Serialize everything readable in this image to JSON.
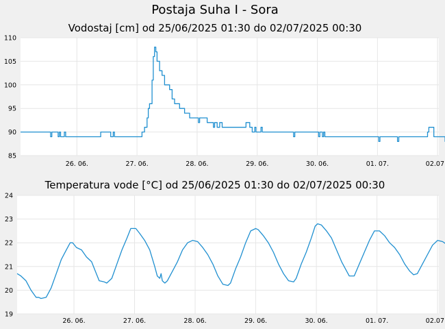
{
  "title": "Postaja Suha I - Sora",
  "colors": {
    "series": "#1f8fd0",
    "background": "#f0f0f0",
    "plot_background": "#ffffff",
    "grid": "#e6e6e6"
  },
  "chart_data": [
    {
      "type": "line",
      "title": "Vodostaj [cm] od 25/06/2025 01:30 do 02/07/2025 00:30",
      "xlabel": "",
      "ylabel": "",
      "ylim": [
        85,
        110
      ],
      "yticks": [
        85,
        90,
        95,
        100,
        105,
        110
      ],
      "x_range": [
        "2025-06-25 01:30",
        "2025-07-02 00:30"
      ],
      "xticks": [
        {
          "date": "2025-06-26 00:00",
          "label": "26. 06."
        },
        {
          "date": "2025-06-27 00:00",
          "label": "27. 06."
        },
        {
          "date": "2025-06-28 00:00",
          "label": "28. 06."
        },
        {
          "date": "2025-06-29 00:00",
          "label": "29. 06."
        },
        {
          "date": "2025-06-30 00:00",
          "label": "30. 06."
        },
        {
          "date": "2025-07-01 00:00",
          "label": "01. 07."
        },
        {
          "date": "2025-07-02 00:00",
          "label": "02.07"
        }
      ],
      "grid": true,
      "series": [
        {
          "values": [
            [
              "2025-06-25 01:30",
              90
            ],
            [
              "2025-06-25 13:00",
              90
            ],
            [
              "2025-06-25 13:30",
              89
            ],
            [
              "2025-06-25 14:00",
              90
            ],
            [
              "2025-06-25 16:00",
              90
            ],
            [
              "2025-06-25 16:30",
              89
            ],
            [
              "2025-06-25 17:00",
              90
            ],
            [
              "2025-06-25 17:30",
              89
            ],
            [
              "2025-06-25 18:30",
              89
            ],
            [
              "2025-06-25 19:00",
              90
            ],
            [
              "2025-06-25 19:30",
              89
            ],
            [
              "2025-06-26 09:00",
              89
            ],
            [
              "2025-06-26 09:30",
              90
            ],
            [
              "2025-06-26 13:00",
              90
            ],
            [
              "2025-06-26 13:30",
              89
            ],
            [
              "2025-06-26 14:00",
              89
            ],
            [
              "2025-06-26 14:30",
              90
            ],
            [
              "2025-06-26 15:00",
              89
            ],
            [
              "2025-06-27 01:30",
              89
            ],
            [
              "2025-06-27 02:00",
              90
            ],
            [
              "2025-06-27 03:00",
              91
            ],
            [
              "2025-06-27 04:00",
              93
            ],
            [
              "2025-06-27 04:30",
              95
            ],
            [
              "2025-06-27 05:00",
              96
            ],
            [
              "2025-06-27 05:30",
              96
            ],
            [
              "2025-06-27 06:00",
              101
            ],
            [
              "2025-06-27 06:30",
              106
            ],
            [
              "2025-06-27 07:00",
              108
            ],
            [
              "2025-06-27 07:30",
              107
            ],
            [
              "2025-06-27 08:00",
              105
            ],
            [
              "2025-06-27 09:00",
              103
            ],
            [
              "2025-06-27 10:00",
              102
            ],
            [
              "2025-06-27 11:00",
              100
            ],
            [
              "2025-06-27 13:00",
              99
            ],
            [
              "2025-06-27 14:00",
              97
            ],
            [
              "2025-06-27 15:00",
              96
            ],
            [
              "2025-06-27 17:00",
              95
            ],
            [
              "2025-06-27 19:00",
              94
            ],
            [
              "2025-06-27 21:00",
              93
            ],
            [
              "2025-06-28 00:00",
              93
            ],
            [
              "2025-06-28 00:30",
              92
            ],
            [
              "2025-06-28 01:00",
              93
            ],
            [
              "2025-06-28 03:00",
              93
            ],
            [
              "2025-06-28 04:00",
              92
            ],
            [
              "2025-06-28 06:00",
              92
            ],
            [
              "2025-06-28 06:30",
              91
            ],
            [
              "2025-06-28 07:00",
              92
            ],
            [
              "2025-06-28 08:00",
              91
            ],
            [
              "2025-06-28 09:00",
              92
            ],
            [
              "2025-06-28 10:00",
              91
            ],
            [
              "2025-06-28 19:00",
              91
            ],
            [
              "2025-06-28 19:30",
              92
            ],
            [
              "2025-06-28 21:00",
              91
            ],
            [
              "2025-06-28 22:00",
              90
            ],
            [
              "2025-06-28 23:00",
              91
            ],
            [
              "2025-06-28 23:30",
              90
            ],
            [
              "2025-06-29 01:00",
              90
            ],
            [
              "2025-06-29 01:30",
              91
            ],
            [
              "2025-06-29 02:00",
              90
            ],
            [
              "2025-06-29 14:00",
              90
            ],
            [
              "2025-06-29 14:30",
              89
            ],
            [
              "2025-06-29 15:00",
              90
            ],
            [
              "2025-06-30 00:00",
              90
            ],
            [
              "2025-06-30 00:30",
              89
            ],
            [
              "2025-06-30 01:00",
              90
            ],
            [
              "2025-06-30 02:00",
              89
            ],
            [
              "2025-06-30 02:30",
              90
            ],
            [
              "2025-06-30 03:00",
              89
            ],
            [
              "2025-07-01 00:00",
              89
            ],
            [
              "2025-07-01 00:30",
              88
            ],
            [
              "2025-07-01 01:00",
              89
            ],
            [
              "2025-07-01 07:30",
              89
            ],
            [
              "2025-07-01 08:00",
              88
            ],
            [
              "2025-07-01 08:30",
              89
            ],
            [
              "2025-07-01 19:30",
              89
            ],
            [
              "2025-07-01 20:00",
              90
            ],
            [
              "2025-07-01 20:30",
              91
            ],
            [
              "2025-07-01 22:00",
              91
            ],
            [
              "2025-07-01 22:30",
              89
            ],
            [
              "2025-07-02 02:30",
              89
            ],
            [
              "2025-07-02 03:00",
              88
            ],
            [
              "2025-07-02 06:00",
              88
            ],
            [
              "2025-07-02 06:30",
              89
            ],
            [
              "2025-07-02 07:00",
              89
            ]
          ]
        }
      ]
    },
    {
      "type": "line",
      "title": "Temperatura vode [°C] od 25/06/2025 01:30 do 02/07/2025 00:30",
      "xlabel": "",
      "ylabel": "",
      "ylim": [
        19,
        24
      ],
      "yticks": [
        19,
        20,
        21,
        22,
        23,
        24
      ],
      "x_range": [
        "2025-06-25 01:30",
        "2025-07-02 00:30"
      ],
      "xticks": [
        {
          "date": "2025-06-26 00:00",
          "label": "26. 06."
        },
        {
          "date": "2025-06-27 00:00",
          "label": "27. 06."
        },
        {
          "date": "2025-06-28 00:00",
          "label": "28. 06."
        },
        {
          "date": "2025-06-29 00:00",
          "label": "29. 06."
        },
        {
          "date": "2025-06-30 00:00",
          "label": "30. 06."
        },
        {
          "date": "2025-07-01 00:00",
          "label": "01. 07."
        },
        {
          "date": "2025-07-02 00:00",
          "label": "02.07"
        }
      ],
      "grid": true,
      "series": [
        {
          "values": [
            [
              "2025-06-25 01:30",
              20.7
            ],
            [
              "2025-06-25 03:00",
              20.6
            ],
            [
              "2025-06-25 05:00",
              20.4
            ],
            [
              "2025-06-25 07:00",
              20.0
            ],
            [
              "2025-06-25 09:00",
              19.7
            ],
            [
              "2025-06-25 10:00",
              19.7
            ],
            [
              "2025-06-25 11:00",
              19.65
            ],
            [
              "2025-06-25 13:00",
              19.7
            ],
            [
              "2025-06-25 15:00",
              20.1
            ],
            [
              "2025-06-25 17:00",
              20.7
            ],
            [
              "2025-06-25 19:00",
              21.3
            ],
            [
              "2025-06-25 21:00",
              21.7
            ],
            [
              "2025-06-25 22:30",
              22.0
            ],
            [
              "2025-06-25 23:30",
              22.0
            ],
            [
              "2025-06-26 01:00",
              21.8
            ],
            [
              "2025-06-26 03:00",
              21.7
            ],
            [
              "2025-06-26 05:00",
              21.4
            ],
            [
              "2025-06-26 07:00",
              21.2
            ],
            [
              "2025-06-26 08:30",
              20.8
            ],
            [
              "2025-06-26 10:00",
              20.4
            ],
            [
              "2025-06-26 12:00",
              20.35
            ],
            [
              "2025-06-26 13:00",
              20.3
            ],
            [
              "2025-06-26 15:00",
              20.5
            ],
            [
              "2025-06-26 17:00",
              21.1
            ],
            [
              "2025-06-26 19:00",
              21.7
            ],
            [
              "2025-06-26 21:00",
              22.2
            ],
            [
              "2025-06-26 22:30",
              22.6
            ],
            [
              "2025-06-27 00:30",
              22.6
            ],
            [
              "2025-06-27 02:00",
              22.4
            ],
            [
              "2025-06-27 04:00",
              22.1
            ],
            [
              "2025-06-27 06:00",
              21.7
            ],
            [
              "2025-06-27 08:00",
              21.0
            ],
            [
              "2025-06-27 09:00",
              20.6
            ],
            [
              "2025-06-27 10:00",
              20.5
            ],
            [
              "2025-06-27 10:30",
              20.7
            ],
            [
              "2025-06-27 11:00",
              20.4
            ],
            [
              "2025-06-27 12:00",
              20.3
            ],
            [
              "2025-06-27 13:00",
              20.4
            ],
            [
              "2025-06-27 15:00",
              20.8
            ],
            [
              "2025-06-27 17:00",
              21.2
            ],
            [
              "2025-06-27 19:00",
              21.7
            ],
            [
              "2025-06-27 21:00",
              22.0
            ],
            [
              "2025-06-27 23:00",
              22.1
            ],
            [
              "2025-06-28 01:00",
              22.05
            ],
            [
              "2025-06-28 03:00",
              21.8
            ],
            [
              "2025-06-28 05:00",
              21.5
            ],
            [
              "2025-06-28 07:00",
              21.1
            ],
            [
              "2025-06-28 09:00",
              20.6
            ],
            [
              "2025-06-28 11:00",
              20.25
            ],
            [
              "2025-06-28 13:00",
              20.2
            ],
            [
              "2025-06-28 14:00",
              20.3
            ],
            [
              "2025-06-28 16:00",
              20.9
            ],
            [
              "2025-06-28 18:00",
              21.4
            ],
            [
              "2025-06-28 20:00",
              22.0
            ],
            [
              "2025-06-28 22:00",
              22.5
            ],
            [
              "2025-06-29 00:00",
              22.6
            ],
            [
              "2025-06-29 01:00",
              22.55
            ],
            [
              "2025-06-29 03:00",
              22.3
            ],
            [
              "2025-06-29 05:00",
              22.0
            ],
            [
              "2025-06-29 07:00",
              21.6
            ],
            [
              "2025-06-29 09:00",
              21.1
            ],
            [
              "2025-06-29 11:00",
              20.7
            ],
            [
              "2025-06-29 13:00",
              20.4
            ],
            [
              "2025-06-29 15:00",
              20.35
            ],
            [
              "2025-06-29 16:00",
              20.5
            ],
            [
              "2025-06-29 18:00",
              21.1
            ],
            [
              "2025-06-29 20:00",
              21.6
            ],
            [
              "2025-06-29 22:00",
              22.2
            ],
            [
              "2025-06-29 23:30",
              22.7
            ],
            [
              "2025-06-30 00:30",
              22.8
            ],
            [
              "2025-06-30 02:00",
              22.75
            ],
            [
              "2025-06-30 04:00",
              22.5
            ],
            [
              "2025-06-30 06:00",
              22.2
            ],
            [
              "2025-06-30 08:00",
              21.7
            ],
            [
              "2025-06-30 10:00",
              21.2
            ],
            [
              "2025-06-30 12:00",
              20.8
            ],
            [
              "2025-06-30 13:00",
              20.6
            ],
            [
              "2025-06-30 15:00",
              20.6
            ],
            [
              "2025-06-30 17:00",
              21.1
            ],
            [
              "2025-06-30 19:00",
              21.6
            ],
            [
              "2025-06-30 21:00",
              22.1
            ],
            [
              "2025-06-30 23:00",
              22.5
            ],
            [
              "2025-07-01 01:00",
              22.5
            ],
            [
              "2025-07-01 03:00",
              22.3
            ],
            [
              "2025-07-01 05:00",
              22.0
            ],
            [
              "2025-07-01 07:00",
              21.8
            ],
            [
              "2025-07-01 09:00",
              21.5
            ],
            [
              "2025-07-01 11:00",
              21.1
            ],
            [
              "2025-07-01 13:00",
              20.8
            ],
            [
              "2025-07-01 14:30",
              20.65
            ],
            [
              "2025-07-01 16:00",
              20.7
            ],
            [
              "2025-07-01 18:00",
              21.1
            ],
            [
              "2025-07-01 20:00",
              21.5
            ],
            [
              "2025-07-01 22:00",
              21.9
            ],
            [
              "2025-07-02 00:00",
              22.1
            ],
            [
              "2025-07-02 02:00",
              22.05
            ],
            [
              "2025-07-02 04:00",
              21.9
            ],
            [
              "2025-07-02 05:30",
              21.7
            ],
            [
              "2025-07-02 06:30",
              21.6
            ]
          ]
        }
      ]
    }
  ]
}
